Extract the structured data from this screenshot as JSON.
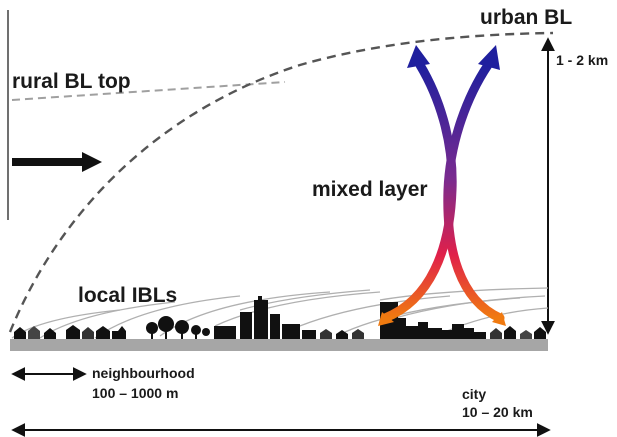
{
  "labels": {
    "urban_bl": "urban BL",
    "rural_bl_top": "rural BL top",
    "height": "1 - 2 km",
    "mixed_layer": "mixed layer",
    "local_ibls": "local IBLs",
    "neighbourhood": "neighbourhood",
    "neighbourhood_scale": "100 – 1000 m",
    "city": "city",
    "city_scale": "10 – 20 km"
  },
  "colors": {
    "ground": "#a6a6a6",
    "dashed_boundary": "#555555",
    "rural_top": "#a0a0a0",
    "arrow_top": "#1f1f9e",
    "arrow_mid": "#7a2b8f",
    "arrow_bottom": "#f07a10",
    "text": "#1a1a1a"
  }
}
